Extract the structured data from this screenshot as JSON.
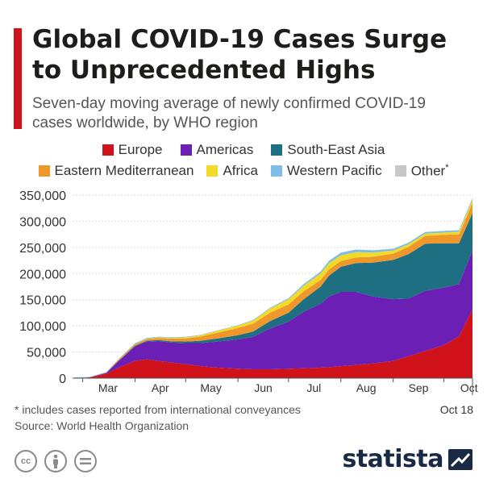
{
  "title": "Global COVID-19 Cases Surge to Unprecedented Highs",
  "subtitle": "Seven-day moving average of newly confirmed COVID-19 cases worldwide, by WHO region",
  "footnote": "* includes cases reported from international conveyances",
  "source": "Source: World Health Organization",
  "date_label": "Oct 18",
  "brand": "statista",
  "colors": {
    "accent": "#d0121b",
    "axis": "#999999",
    "grid": "#dddddd"
  },
  "chart_data": {
    "type": "area",
    "stacked": true,
    "x_tick_labels": [
      "Mar",
      "Apr",
      "May",
      "Jun",
      "Jul",
      "Aug",
      "Sep",
      "Oct"
    ],
    "x": [
      "2020-02-25",
      "2020-03-05",
      "2020-03-15",
      "2020-03-22",
      "2020-04-01",
      "2020-04-08",
      "2020-04-15",
      "2020-04-22",
      "2020-05-01",
      "2020-05-10",
      "2020-05-20",
      "2020-06-01",
      "2020-06-10",
      "2020-06-20",
      "2020-07-01",
      "2020-07-10",
      "2020-07-20",
      "2020-07-25",
      "2020-08-01",
      "2020-08-10",
      "2020-08-20",
      "2020-09-01",
      "2020-09-10",
      "2020-09-20",
      "2020-10-01",
      "2020-10-10",
      "2020-10-18"
    ],
    "ylim": [
      0,
      350000
    ],
    "y_ticks": [
      0,
      50000,
      100000,
      150000,
      200000,
      250000,
      300000,
      350000
    ],
    "y_tick_labels": [
      "0",
      "50,000",
      "100,000",
      "150,000",
      "200,000",
      "250,000",
      "300,000",
      "350,000"
    ],
    "series": [
      {
        "name": "Europe",
        "color": "#d0121b",
        "values": [
          0,
          1500,
          8000,
          20000,
          33000,
          36000,
          33000,
          30000,
          27000,
          23000,
          20000,
          18000,
          17000,
          17000,
          18000,
          19000,
          20000,
          21000,
          23000,
          25000,
          28000,
          33000,
          42000,
          52000,
          63000,
          80000,
          132000
        ]
      },
      {
        "name": "Americas",
        "color": "#6b1fb5",
        "values": [
          0,
          0,
          2000,
          12000,
          28000,
          34000,
          38000,
          38000,
          40000,
          44000,
          50000,
          56000,
          62000,
          78000,
          90000,
          108000,
          122000,
          135000,
          142000,
          140000,
          128000,
          118000,
          110000,
          115000,
          110000,
          100000,
          112000
        ]
      },
      {
        "name": "South-East Asia",
        "color": "#1f6f83",
        "values": [
          0,
          0,
          0,
          300,
          1000,
          1500,
          2000,
          2500,
          3000,
          4500,
          6000,
          8000,
          10000,
          14000,
          17000,
          24000,
          33000,
          40000,
          48000,
          55000,
          65000,
          75000,
          85000,
          90000,
          85000,
          78000,
          72000
        ]
      },
      {
        "name": "Eastern Mediterranean",
        "color": "#f0972c",
        "values": [
          0,
          0,
          1000,
          2000,
          3000,
          3500,
          4000,
          5000,
          6000,
          8000,
          11000,
          14000,
          15000,
          16000,
          16000,
          15000,
          13000,
          12000,
          11000,
          11000,
          11000,
          12000,
          14000,
          15000,
          16000,
          17000,
          19000
        ]
      },
      {
        "name": "Africa",
        "color": "#f2da26",
        "values": [
          0,
          0,
          0,
          100,
          300,
          500,
          1000,
          1500,
          2000,
          2500,
          3500,
          4500,
          6000,
          8000,
          10000,
          11000,
          12000,
          12000,
          11000,
          10000,
          8000,
          6000,
          5000,
          4500,
          4500,
          5000,
          6000
        ]
      },
      {
        "name": "Western Pacific",
        "color": "#7dbde8",
        "values": [
          1500,
          800,
          700,
          1200,
          1500,
          1500,
          1200,
          1000,
          1000,
          1000,
          1000,
          1000,
          1200,
          1500,
          2000,
          3000,
          4000,
          4500,
          5000,
          5000,
          4500,
          3500,
          3000,
          3000,
          3000,
          3000,
          3500
        ]
      },
      {
        "name": "Other",
        "name_suffix": "*",
        "color": "#c8c8c8",
        "values": [
          0,
          0,
          0,
          0,
          0,
          0,
          0,
          0,
          0,
          0,
          0,
          0,
          0,
          0,
          0,
          0,
          0,
          0,
          0,
          0,
          0,
          0,
          0,
          0,
          0,
          0,
          0
        ]
      }
    ]
  }
}
